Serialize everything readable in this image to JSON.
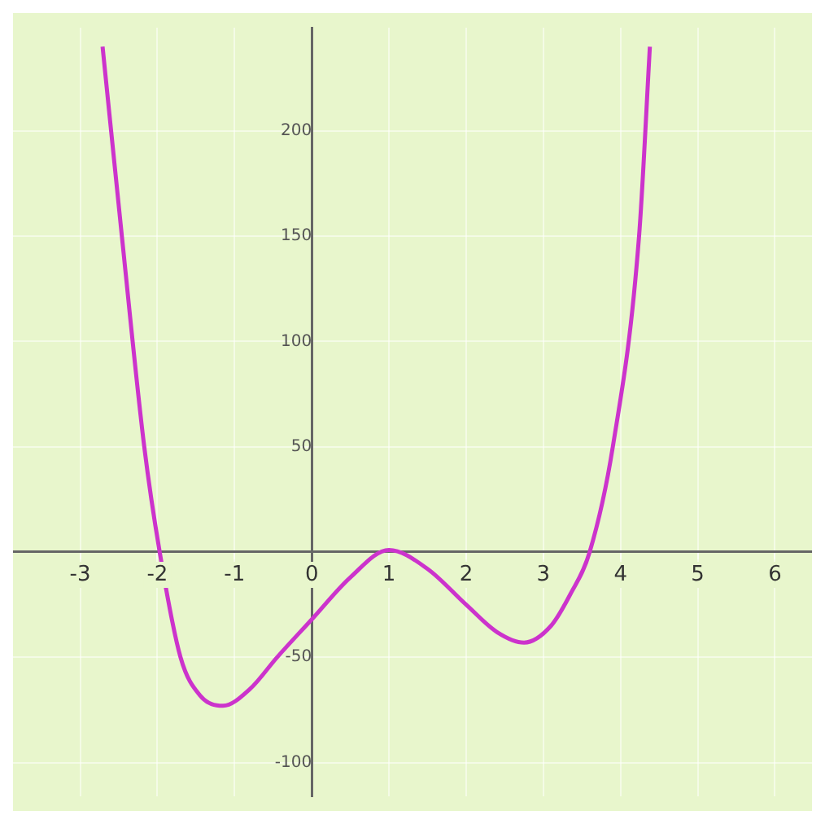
{
  "chart_data": {
    "type": "line",
    "x": [
      -2.71,
      -2.46,
      -2.17,
      -1.97,
      -1.7,
      -1.45,
      -1.15,
      -0.8,
      -0.45,
      0,
      0.5,
      1,
      1.5,
      2,
      2.4,
      2.75,
      3.1,
      3.35,
      3.6,
      3.9,
      4.24,
      4.38
    ],
    "series": [
      {
        "color": "#cc33cc",
        "values": [
          240,
          150,
          50,
          0,
          -50,
          -68,
          -73,
          -65,
          -50,
          -32,
          -12,
          1,
          -8,
          -25,
          -38,
          -43,
          -35,
          -20,
          0,
          50,
          150,
          240
        ]
      }
    ],
    "xlim": [
      -3.87,
      6.48
    ],
    "ylim": [
      -116,
      249
    ],
    "xticks": [
      -3,
      -2,
      -1,
      0,
      1,
      2,
      3,
      4,
      5,
      6
    ],
    "yticks": [
      -100,
      -50,
      50,
      100,
      150,
      200
    ],
    "grid": true,
    "marker": "none"
  }
}
